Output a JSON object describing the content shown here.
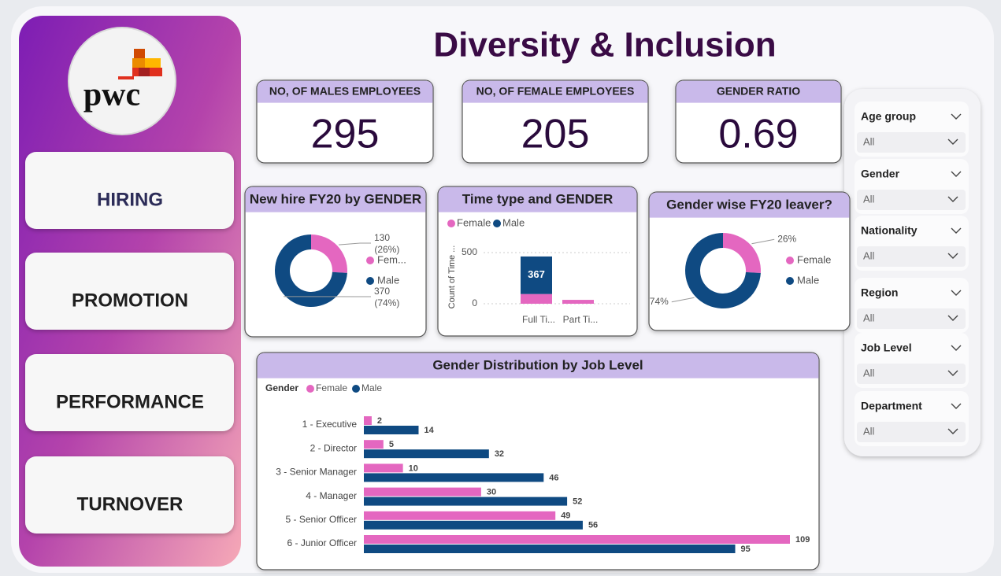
{
  "header": {
    "title": "Diversity & Inclusion"
  },
  "logo": {
    "text": "pwc"
  },
  "nav": [
    "HIRING",
    "PROMOTION",
    "PERFORMANCE",
    "TURNOVER"
  ],
  "kpis": [
    {
      "label": "NO, OF MALES EMPLOYEES",
      "value": 295
    },
    {
      "label": "NO, OF FEMALE EMPLOYEES",
      "value": 205
    },
    {
      "label": "GENDER RATIO",
      "value": 0.69
    }
  ],
  "chart_data": [
    {
      "type": "donut",
      "title": "New hire FY20 by GENDER",
      "categories": [
        "Fem...",
        "Male"
      ],
      "values": [
        130,
        370
      ],
      "value_labels": [
        "130 (26%)",
        "370 (74%)"
      ],
      "colors": [
        "#e467c0",
        "#0f4a82"
      ]
    },
    {
      "type": "stacked_column",
      "title": "Time type and GENDER",
      "y_label": "Count of Time ...",
      "categories": [
        "Full Ti...",
        "Part Ti..."
      ],
      "series": [
        {
          "name": "Female",
          "color": "#e467c0",
          "values": [
            95,
            38
          ]
        },
        {
          "name": "Male",
          "color": "#0f4a82",
          "values": [
            367,
            0
          ]
        }
      ],
      "ylim": [
        0,
        550
      ],
      "yticks": [
        0,
        500
      ],
      "grid": true
    },
    {
      "type": "donut",
      "title": "Gender wise FY20 leaver?",
      "categories": [
        "Female",
        "Male"
      ],
      "values": [
        26,
        74
      ],
      "value_labels": [
        "26%",
        "74%"
      ],
      "colors": [
        "#e467c0",
        "#0f4a82"
      ]
    },
    {
      "type": "grouped_bar_h",
      "title": "Gender Distribution by Job Level",
      "legend_title": "Gender",
      "categories": [
        "1 - Executive",
        "2 - Director",
        "3 - Senior Manager",
        "4 - Manager",
        "5 - Senior Officer",
        "6 - Junior Officer"
      ],
      "series": [
        {
          "name": "Female",
          "color": "#e467c0",
          "values": [
            2,
            5,
            10,
            30,
            49,
            109
          ]
        },
        {
          "name": "Male",
          "color": "#0f4a82",
          "values": [
            14,
            32,
            46,
            52,
            56,
            95
          ]
        }
      ]
    }
  ],
  "slicers": [
    {
      "label": "Age group",
      "value": "All"
    },
    {
      "label": "Gender",
      "value": "All"
    },
    {
      "label": "Nationality",
      "value": "All"
    },
    {
      "label": "Region",
      "value": "All"
    },
    {
      "label": "Job Level",
      "value": "All"
    },
    {
      "label": "Department",
      "value": "All"
    }
  ]
}
